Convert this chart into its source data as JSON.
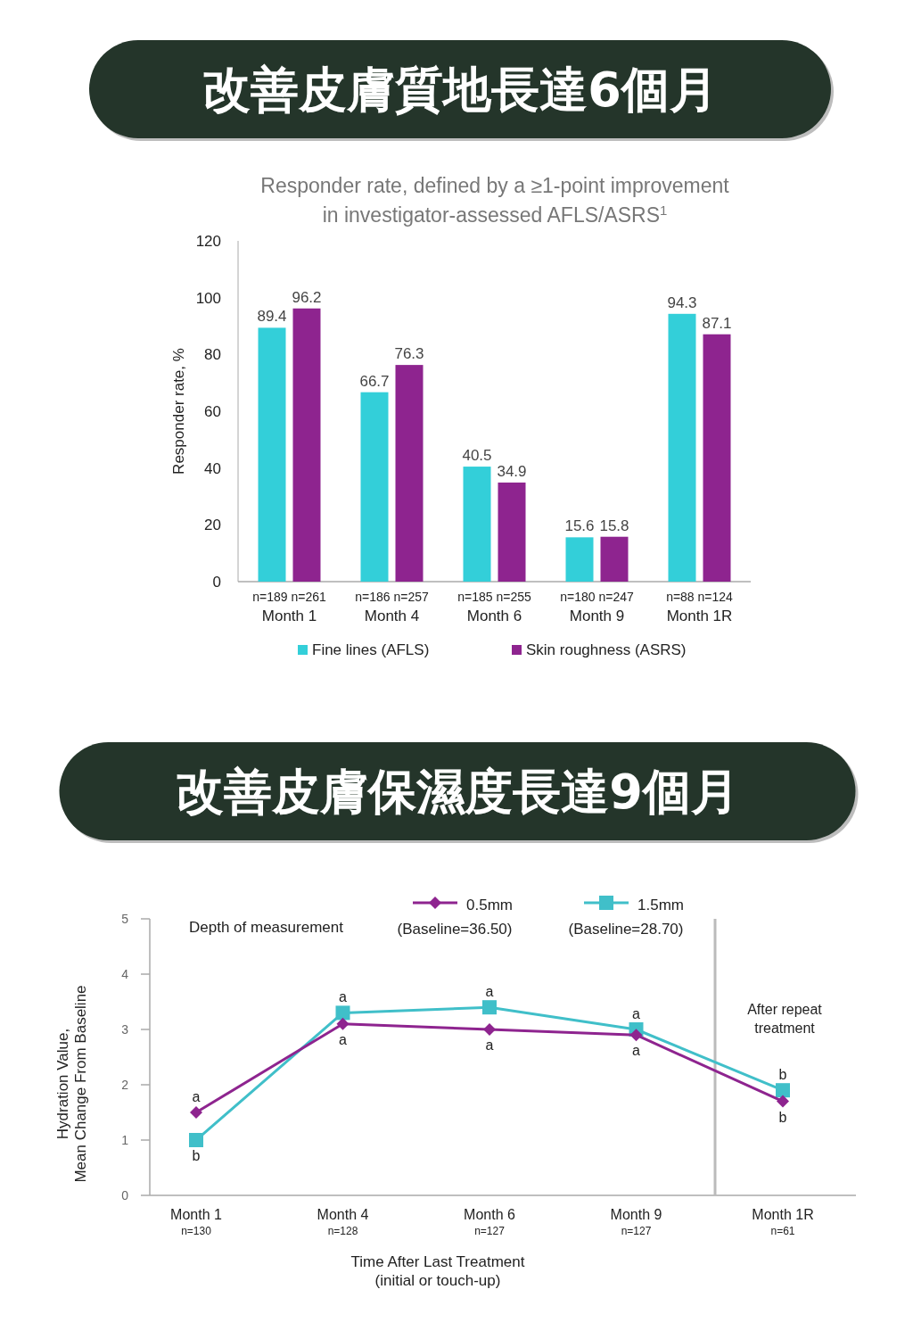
{
  "chart_data": [
    {
      "type": "bar",
      "title": "改善皮膚質地長達6個月",
      "subtitle": "Responder rate, defined by a ≥1-point improvement\nin investigator-assessed AFLS/ASRS$^{1}$",
      "ylabel": "Responder rate, %",
      "categories": [
        "n=189  n=261\nMonth 1",
        "n=186  n=257\nMonth 4",
        "n=185  n=255\nMonth 6",
        "n=180  n=247\nMonth 9",
        "n=88   n=124\nMonth 1R"
      ],
      "series": [
        {
          "name": "Fine lines (AFLS)",
          "color": "#33cfd9",
          "values": [
            89.4,
            66.7,
            40.5,
            15.6,
            94.3
          ]
        },
        {
          "name": "Skin roughness (ASRS)",
          "color": "#8e248f",
          "values": [
            96.2,
            76.3,
            34.9,
            15.8,
            87.1
          ]
        }
      ],
      "ylim": [
        0,
        120
      ],
      "yticks": [
        0,
        20,
        40,
        60,
        80,
        100,
        120
      ],
      "data_labels": true,
      "legend": "bottom",
      "grid": false
    },
    {
      "type": "line",
      "title": "改善皮膚保濕度長達9個月",
      "xlabel": "Time After Last Treatment\n(initial or touch-up)",
      "ylabel": "Hydration Value,\nMean Change From Baseline",
      "legend_title": "Depth of measurement",
      "categories": [
        "Month 1\nn=130",
        "Month 4\nn=128",
        "Month 6\nn=127",
        "Month 9\nn=127",
        "Month 1R\nn=61"
      ],
      "series": [
        {
          "name": "0.5mm\n(Baseline=36.50)",
          "color": "#8e248f",
          "marker": "diamond",
          "values": [
            1.5,
            3.1,
            3.0,
            2.9,
            1.7
          ]
        },
        {
          "name": "1.5mm\n(Baseline=28.70)",
          "color": "#40bfc9",
          "marker": "square",
          "values": [
            1.0,
            3.3,
            3.4,
            3.0,
            1.9
          ]
        }
      ],
      "ylim": [
        0,
        5
      ],
      "yticks": [
        0,
        1,
        2,
        3,
        4,
        5
      ],
      "legend": "top",
      "grid": false,
      "line_style": "solid",
      "annotations": [
        "After repeat\ntreatment",
        {
          "text": "a",
          "x": "Month 1\nn=130",
          "y": 1.5
        },
        {
          "text": "b",
          "x": "Month 1\nn=130",
          "y": 1.0
        },
        {
          "text": "a",
          "x": "Month 4\nn=128",
          "y": 3.3
        },
        {
          "text": "a",
          "x": "Month 4\nn=128",
          "y": 3.1
        },
        {
          "text": "a",
          "x": "Month 6\nn=127",
          "y": 3.4
        },
        {
          "text": "a",
          "x": "Month 6\nn=127",
          "y": 3.0
        },
        {
          "text": "a",
          "x": "Month 9\nn=127",
          "y": 3.0
        },
        {
          "text": "a",
          "x": "Month 9\nn=127",
          "y": 2.9
        },
        {
          "text": "b",
          "x": "Month 1R\nn=61",
          "y": 1.9
        },
        {
          "text": "b",
          "x": "Month 1R\nn=61",
          "y": 1.7
        }
      ]
    }
  ]
}
